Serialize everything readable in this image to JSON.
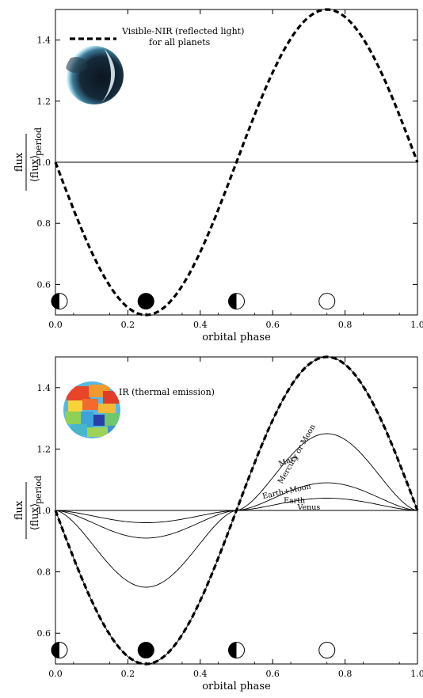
{
  "chart_data": [
    {
      "type": "line",
      "xlabel": "orbital phase",
      "ylabel_top": "flux",
      "ylabel_bottom": "⟨flux⟩",
      "ylabel_sub": "period",
      "xlim": [
        0.0,
        1.0
      ],
      "ylim": [
        0.5,
        1.5
      ],
      "xticks": [
        "0.0",
        "0.2",
        "0.4",
        "0.6",
        "0.8",
        "1.0"
      ],
      "yticks": [
        "0.6",
        "0.8",
        "1.0",
        "1.2",
        "1.4"
      ],
      "legend_label": "Visible-NIR (reflected light)",
      "legend_label2": "for all planets",
      "inset_image": "earth-crescent",
      "phase_icons": [
        {
          "x": 0.0,
          "phase": "half-left-dark"
        },
        {
          "x": 0.25,
          "phase": "new"
        },
        {
          "x": 0.5,
          "phase": "half-left-dark"
        },
        {
          "x": 0.75,
          "phase": "full"
        }
      ],
      "series": [
        {
          "style": "dashed",
          "shape": "sinusoid",
          "amplitude": 0.5,
          "peak_phase": 0.75,
          "mean": 1.0
        },
        {
          "style": "solid",
          "shape": "constant",
          "value": 1.0
        }
      ]
    },
    {
      "type": "line",
      "xlabel": "orbital phase",
      "ylabel_top": "flux",
      "ylabel_bottom": "⟨flux⟩",
      "ylabel_sub": "period",
      "xlim": [
        0.0,
        1.0
      ],
      "ylim": [
        0.5,
        1.5
      ],
      "xticks": [
        "0.0",
        "0.2",
        "0.4",
        "0.6",
        "0.8",
        "1.0"
      ],
      "yticks": [
        "0.6",
        "0.8",
        "1.0",
        "1.2",
        "1.4"
      ],
      "legend_label": "IR (thermal emission)",
      "inset_image": "thermal-map",
      "phase_icons": [
        {
          "x": 0.0,
          "phase": "half-left-dark"
        },
        {
          "x": 0.25,
          "phase": "new"
        },
        {
          "x": 0.5,
          "phase": "half-left-dark"
        },
        {
          "x": 0.75,
          "phase": "full"
        }
      ],
      "series": [
        {
          "style": "dashed",
          "shape": "sinusoid",
          "amplitude": 0.5,
          "peak_phase": 0.75,
          "mean": 1.0
        },
        {
          "style": "solid",
          "shape": "sinusoid",
          "amplitude": 0.5,
          "peak_phase": 0.75,
          "mean": 1.0,
          "name": "Mercury or Moon"
        },
        {
          "style": "solid",
          "shape": "rounded",
          "amplitude": 0.25,
          "peak_phase": 0.75,
          "mean": 1.0,
          "name": "Mars"
        },
        {
          "style": "solid",
          "shape": "rounded",
          "amplitude": 0.09,
          "peak_phase": 0.75,
          "mean": 1.0,
          "name": "Earth+Moon"
        },
        {
          "style": "solid",
          "shape": "rounded",
          "amplitude": 0.04,
          "peak_phase": 0.75,
          "mean": 1.0,
          "name": "Earth"
        },
        {
          "style": "solid",
          "shape": "constant",
          "value": 1.0,
          "name": "Venus"
        }
      ]
    }
  ]
}
